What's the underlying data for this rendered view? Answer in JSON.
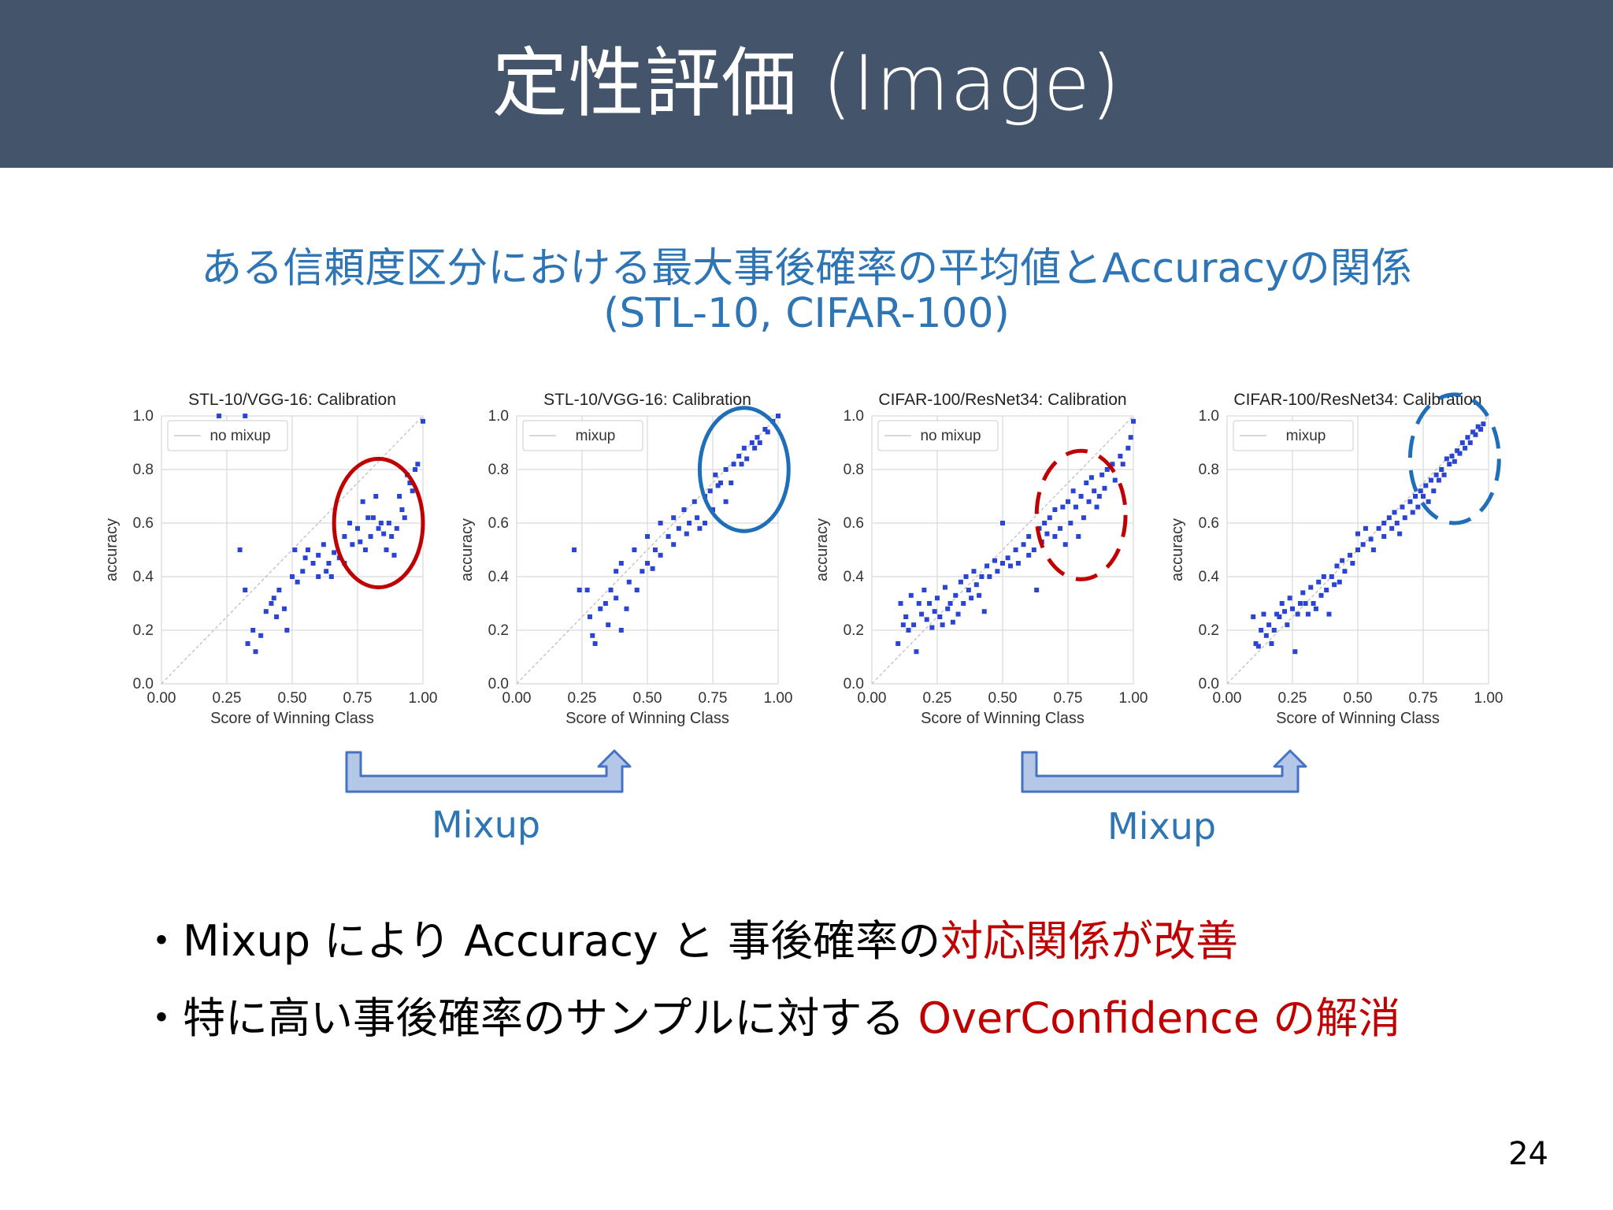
{
  "slide": {
    "title": "定性評価 (Image)",
    "subtitle_line1": "ある信頼度区分における最大事後確率の平均値とAccuracyの関係",
    "subtitle_line2": "(STL-10, CIFAR-100)",
    "page_number": "24",
    "mixup_label_1": "Mixup",
    "mixup_label_2": "Mixup",
    "bullet_1": {
      "marker": "・",
      "text_black": "Mixup により Accuracy と 事後確率の",
      "text_red": "対応関係が改善"
    },
    "bullet_2": {
      "marker": "・",
      "text_black": "特に高い事後確率のサンプルに対する ",
      "text_red": "OverConfidence の解消"
    }
  },
  "colors": {
    "title_bar": "#44546a",
    "subtitle": "#2e75b6",
    "highlight_red": "#c00000",
    "point": "#2a45d1",
    "circle_red": "#c00000",
    "circle_blue": "#1f6fb8",
    "arrow_fill": "#b4c7e7",
    "arrow_stroke": "#4472c4"
  },
  "chart_data": [
    {
      "type": "scatter",
      "title": "STL-10/VGG-16: Calibration",
      "xlabel": "Score of Winning Class",
      "ylabel": "accuracy",
      "xlim": [
        0,
        1
      ],
      "ylim": [
        0,
        1
      ],
      "xticks": [
        "0.00",
        "0.25",
        "0.50",
        "0.75",
        "1.00"
      ],
      "yticks": [
        "0.0",
        "0.2",
        "0.4",
        "0.6",
        "0.8",
        "1.0"
      ],
      "legend": "no mixup",
      "legend_position": "top-left",
      "grid": true,
      "diagonal": true,
      "annotation": "solid red ellipse",
      "points": [
        [
          0.22,
          1.0
        ],
        [
          0.32,
          1.0
        ],
        [
          0.3,
          0.5
        ],
        [
          0.32,
          0.35
        ],
        [
          0.35,
          0.2
        ],
        [
          0.33,
          0.15
        ],
        [
          0.36,
          0.12
        ],
        [
          0.38,
          0.18
        ],
        [
          0.4,
          0.27
        ],
        [
          0.42,
          0.3
        ],
        [
          0.44,
          0.25
        ],
        [
          0.43,
          0.32
        ],
        [
          0.45,
          0.35
        ],
        [
          0.47,
          0.28
        ],
        [
          0.48,
          0.2
        ],
        [
          0.5,
          0.4
        ],
        [
          0.51,
          0.5
        ],
        [
          0.52,
          0.38
        ],
        [
          0.54,
          0.42
        ],
        [
          0.55,
          0.47
        ],
        [
          0.56,
          0.5
        ],
        [
          0.58,
          0.45
        ],
        [
          0.6,
          0.48
        ],
        [
          0.6,
          0.4
        ],
        [
          0.62,
          0.52
        ],
        [
          0.63,
          0.42
        ],
        [
          0.64,
          0.45
        ],
        [
          0.65,
          0.4
        ],
        [
          0.66,
          0.49
        ],
        [
          0.68,
          0.47
        ],
        [
          0.7,
          0.45
        ],
        [
          0.7,
          0.55
        ],
        [
          0.72,
          0.6
        ],
        [
          0.73,
          0.52
        ],
        [
          0.75,
          0.58
        ],
        [
          0.76,
          0.53
        ],
        [
          0.77,
          0.68
        ],
        [
          0.78,
          0.5
        ],
        [
          0.79,
          0.62
        ],
        [
          0.8,
          0.55
        ],
        [
          0.81,
          0.62
        ],
        [
          0.82,
          0.7
        ],
        [
          0.83,
          0.58
        ],
        [
          0.84,
          0.6
        ],
        [
          0.85,
          0.56
        ],
        [
          0.86,
          0.5
        ],
        [
          0.87,
          0.6
        ],
        [
          0.88,
          0.55
        ],
        [
          0.89,
          0.48
        ],
        [
          0.9,
          0.58
        ],
        [
          0.91,
          0.7
        ],
        [
          0.92,
          0.65
        ],
        [
          0.93,
          0.62
        ],
        [
          0.94,
          0.78
        ],
        [
          0.95,
          0.75
        ],
        [
          0.96,
          0.72
        ],
        [
          0.97,
          0.8
        ],
        [
          0.98,
          0.82
        ],
        [
          1.0,
          0.98
        ]
      ]
    },
    {
      "type": "scatter",
      "title": "STL-10/VGG-16: Calibration",
      "xlabel": "Score of Winning Class",
      "ylabel": "accuracy",
      "xlim": [
        0,
        1
      ],
      "ylim": [
        0,
        1
      ],
      "xticks": [
        "0.00",
        "0.25",
        "0.50",
        "0.75",
        "1.00"
      ],
      "yticks": [
        "0.0",
        "0.2",
        "0.4",
        "0.6",
        "0.8",
        "1.0"
      ],
      "legend": "mixup",
      "legend_position": "top-left",
      "grid": true,
      "diagonal": true,
      "annotation": "solid blue ellipse",
      "points": [
        [
          0.22,
          0.5
        ],
        [
          0.24,
          0.35
        ],
        [
          0.27,
          0.35
        ],
        [
          0.28,
          0.25
        ],
        [
          0.29,
          0.18
        ],
        [
          0.3,
          0.15
        ],
        [
          0.32,
          0.28
        ],
        [
          0.34,
          0.3
        ],
        [
          0.35,
          0.22
        ],
        [
          0.36,
          0.35
        ],
        [
          0.38,
          0.32
        ],
        [
          0.38,
          0.42
        ],
        [
          0.4,
          0.45
        ],
        [
          0.4,
          0.2
        ],
        [
          0.42,
          0.28
        ],
        [
          0.43,
          0.38
        ],
        [
          0.45,
          0.5
        ],
        [
          0.46,
          0.35
        ],
        [
          0.48,
          0.42
        ],
        [
          0.5,
          0.55
        ],
        [
          0.5,
          0.45
        ],
        [
          0.52,
          0.43
        ],
        [
          0.53,
          0.5
        ],
        [
          0.55,
          0.48
        ],
        [
          0.55,
          0.6
        ],
        [
          0.58,
          0.55
        ],
        [
          0.6,
          0.52
        ],
        [
          0.6,
          0.62
        ],
        [
          0.62,
          0.58
        ],
        [
          0.64,
          0.65
        ],
        [
          0.65,
          0.56
        ],
        [
          0.66,
          0.6
        ],
        [
          0.68,
          0.68
        ],
        [
          0.69,
          0.62
        ],
        [
          0.7,
          0.58
        ],
        [
          0.72,
          0.6
        ],
        [
          0.72,
          0.7
        ],
        [
          0.74,
          0.72
        ],
        [
          0.75,
          0.65
        ],
        [
          0.76,
          0.78
        ],
        [
          0.77,
          0.74
        ],
        [
          0.78,
          0.75
        ],
        [
          0.8,
          0.8
        ],
        [
          0.8,
          0.68
        ],
        [
          0.82,
          0.75
        ],
        [
          0.83,
          0.82
        ],
        [
          0.85,
          0.85
        ],
        [
          0.86,
          0.82
        ],
        [
          0.87,
          0.88
        ],
        [
          0.88,
          0.84
        ],
        [
          0.9,
          0.9
        ],
        [
          0.91,
          0.88
        ],
        [
          0.92,
          0.92
        ],
        [
          0.93,
          0.9
        ],
        [
          0.95,
          0.95
        ],
        [
          0.96,
          0.94
        ],
        [
          0.98,
          0.98
        ],
        [
          1.0,
          1.0
        ]
      ]
    },
    {
      "type": "scatter",
      "title": "CIFAR-100/ResNet34: Calibration",
      "xlabel": "Score of Winning Class",
      "ylabel": "accuracy",
      "xlim": [
        0,
        1
      ],
      "ylim": [
        0,
        1
      ],
      "xticks": [
        "0.00",
        "0.25",
        "0.50",
        "0.75",
        "1.00"
      ],
      "yticks": [
        "0.0",
        "0.2",
        "0.4",
        "0.6",
        "0.8",
        "1.0"
      ],
      "legend": "no mixup",
      "legend_position": "top-left",
      "grid": true,
      "diagonal": true,
      "annotation": "dashed red ellipse",
      "points": [
        [
          0.1,
          0.15
        ],
        [
          0.11,
          0.3
        ],
        [
          0.12,
          0.22
        ],
        [
          0.13,
          0.25
        ],
        [
          0.14,
          0.2
        ],
        [
          0.15,
          0.33
        ],
        [
          0.16,
          0.22
        ],
        [
          0.17,
          0.12
        ],
        [
          0.18,
          0.3
        ],
        [
          0.19,
          0.26
        ],
        [
          0.2,
          0.35
        ],
        [
          0.21,
          0.24
        ],
        [
          0.22,
          0.3
        ],
        [
          0.23,
          0.21
        ],
        [
          0.24,
          0.27
        ],
        [
          0.25,
          0.32
        ],
        [
          0.26,
          0.25
        ],
        [
          0.27,
          0.22
        ],
        [
          0.28,
          0.36
        ],
        [
          0.29,
          0.28
        ],
        [
          0.3,
          0.3
        ],
        [
          0.31,
          0.23
        ],
        [
          0.32,
          0.33
        ],
        [
          0.33,
          0.26
        ],
        [
          0.34,
          0.38
        ],
        [
          0.35,
          0.3
        ],
        [
          0.36,
          0.4
        ],
        [
          0.37,
          0.35
        ],
        [
          0.38,
          0.32
        ],
        [
          0.39,
          0.42
        ],
        [
          0.4,
          0.37
        ],
        [
          0.41,
          0.33
        ],
        [
          0.42,
          0.4
        ],
        [
          0.43,
          0.27
        ],
        [
          0.44,
          0.44
        ],
        [
          0.45,
          0.4
        ],
        [
          0.47,
          0.46
        ],
        [
          0.48,
          0.42
        ],
        [
          0.5,
          0.6
        ],
        [
          0.5,
          0.45
        ],
        [
          0.52,
          0.47
        ],
        [
          0.53,
          0.44
        ],
        [
          0.55,
          0.5
        ],
        [
          0.56,
          0.45
        ],
        [
          0.58,
          0.52
        ],
        [
          0.6,
          0.48
        ],
        [
          0.6,
          0.55
        ],
        [
          0.62,
          0.5
        ],
        [
          0.63,
          0.35
        ],
        [
          0.64,
          0.58
        ],
        [
          0.65,
          0.53
        ],
        [
          0.66,
          0.6
        ],
        [
          0.67,
          0.56
        ],
        [
          0.68,
          0.62
        ],
        [
          0.7,
          0.55
        ],
        [
          0.7,
          0.65
        ],
        [
          0.72,
          0.58
        ],
        [
          0.73,
          0.66
        ],
        [
          0.74,
          0.52
        ],
        [
          0.75,
          0.68
        ],
        [
          0.76,
          0.6
        ],
        [
          0.77,
          0.72
        ],
        [
          0.78,
          0.66
        ],
        [
          0.79,
          0.55
        ],
        [
          0.8,
          0.7
        ],
        [
          0.81,
          0.62
        ],
        [
          0.82,
          0.75
        ],
        [
          0.83,
          0.68
        ],
        [
          0.84,
          0.77
        ],
        [
          0.85,
          0.72
        ],
        [
          0.86,
          0.66
        ],
        [
          0.87,
          0.7
        ],
        [
          0.88,
          0.78
        ],
        [
          0.89,
          0.73
        ],
        [
          0.9,
          0.8
        ],
        [
          0.92,
          0.82
        ],
        [
          0.93,
          0.76
        ],
        [
          0.95,
          0.85
        ],
        [
          0.96,
          0.82
        ],
        [
          0.98,
          0.88
        ],
        [
          0.99,
          0.92
        ],
        [
          1.0,
          0.98
        ]
      ]
    },
    {
      "type": "scatter",
      "title": "CIFAR-100/ResNet34: Calibration",
      "xlabel": "Score of Winning Class",
      "ylabel": "accuracy",
      "xlim": [
        0,
        1
      ],
      "ylim": [
        0,
        1
      ],
      "xticks": [
        "0.00",
        "0.25",
        "0.50",
        "0.75",
        "1.00"
      ],
      "yticks": [
        "0.0",
        "0.2",
        "0.4",
        "0.6",
        "0.8",
        "1.0"
      ],
      "legend": "mixup",
      "legend_position": "top-left",
      "grid": true,
      "diagonal": true,
      "annotation": "dashed blue ellipse",
      "points": [
        [
          0.1,
          0.25
        ],
        [
          0.11,
          0.15
        ],
        [
          0.12,
          0.14
        ],
        [
          0.13,
          0.2
        ],
        [
          0.14,
          0.26
        ],
        [
          0.15,
          0.18
        ],
        [
          0.16,
          0.22
        ],
        [
          0.17,
          0.15
        ],
        [
          0.18,
          0.2
        ],
        [
          0.19,
          0.26
        ],
        [
          0.2,
          0.25
        ],
        [
          0.21,
          0.3
        ],
        [
          0.22,
          0.27
        ],
        [
          0.23,
          0.22
        ],
        [
          0.24,
          0.32
        ],
        [
          0.25,
          0.28
        ],
        [
          0.26,
          0.12
        ],
        [
          0.27,
          0.26
        ],
        [
          0.28,
          0.3
        ],
        [
          0.29,
          0.34
        ],
        [
          0.3,
          0.3
        ],
        [
          0.31,
          0.26
        ],
        [
          0.32,
          0.36
        ],
        [
          0.33,
          0.3
        ],
        [
          0.34,
          0.28
        ],
        [
          0.35,
          0.38
        ],
        [
          0.36,
          0.33
        ],
        [
          0.37,
          0.4
        ],
        [
          0.38,
          0.35
        ],
        [
          0.39,
          0.26
        ],
        [
          0.4,
          0.4
        ],
        [
          0.41,
          0.37
        ],
        [
          0.42,
          0.44
        ],
        [
          0.43,
          0.38
        ],
        [
          0.44,
          0.46
        ],
        [
          0.45,
          0.42
        ],
        [
          0.47,
          0.48
        ],
        [
          0.48,
          0.45
        ],
        [
          0.5,
          0.5
        ],
        [
          0.5,
          0.56
        ],
        [
          0.52,
          0.52
        ],
        [
          0.53,
          0.58
        ],
        [
          0.55,
          0.54
        ],
        [
          0.56,
          0.5
        ],
        [
          0.58,
          0.58
        ],
        [
          0.6,
          0.55
        ],
        [
          0.6,
          0.6
        ],
        [
          0.62,
          0.62
        ],
        [
          0.63,
          0.58
        ],
        [
          0.64,
          0.64
        ],
        [
          0.65,
          0.6
        ],
        [
          0.66,
          0.56
        ],
        [
          0.67,
          0.66
        ],
        [
          0.68,
          0.62
        ],
        [
          0.7,
          0.68
        ],
        [
          0.71,
          0.64
        ],
        [
          0.72,
          0.7
        ],
        [
          0.73,
          0.66
        ],
        [
          0.74,
          0.72
        ],
        [
          0.75,
          0.7
        ],
        [
          0.76,
          0.74
        ],
        [
          0.77,
          0.68
        ],
        [
          0.78,
          0.76
        ],
        [
          0.79,
          0.72
        ],
        [
          0.8,
          0.78
        ],
        [
          0.81,
          0.76
        ],
        [
          0.82,
          0.8
        ],
        [
          0.83,
          0.78
        ],
        [
          0.84,
          0.84
        ],
        [
          0.85,
          0.82
        ],
        [
          0.86,
          0.85
        ],
        [
          0.87,
          0.83
        ],
        [
          0.88,
          0.87
        ],
        [
          0.89,
          0.86
        ],
        [
          0.9,
          0.9
        ],
        [
          0.91,
          0.88
        ],
        [
          0.92,
          0.92
        ],
        [
          0.93,
          0.9
        ],
        [
          0.94,
          0.94
        ],
        [
          0.95,
          0.93
        ],
        [
          0.96,
          0.96
        ],
        [
          0.97,
          0.95
        ],
        [
          0.98,
          0.97
        ]
      ]
    }
  ]
}
